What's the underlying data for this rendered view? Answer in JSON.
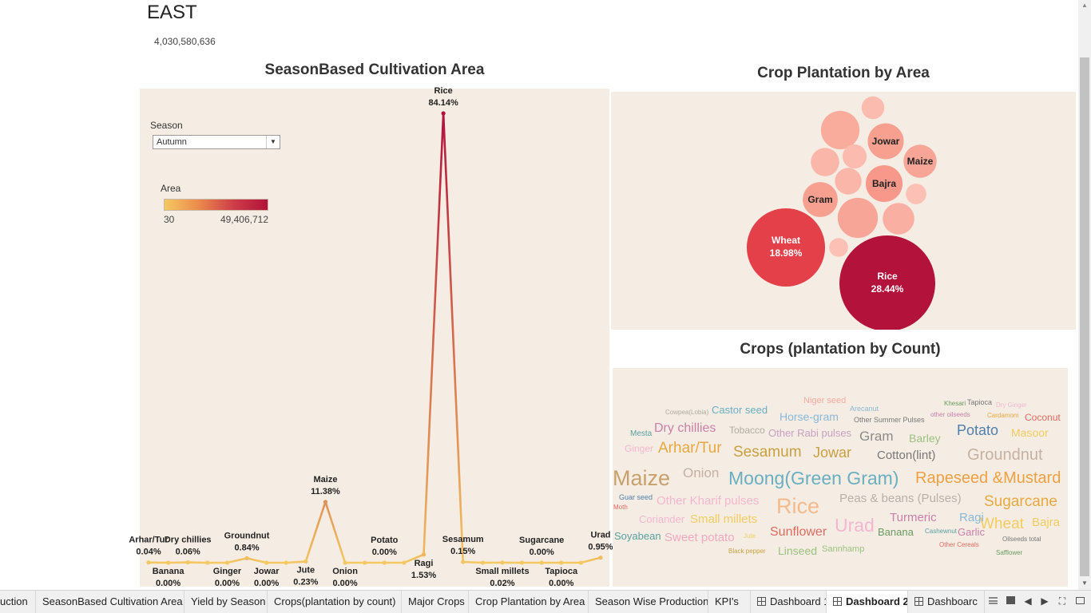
{
  "header": {
    "region": "EAST",
    "total_area": "4,030,580,636"
  },
  "season_chart": {
    "title": "SeasonBased Cultivation Area",
    "filter_label": "Season",
    "filter_value": "Autumn",
    "legend_title": "Area",
    "legend_min": "30",
    "legend_max": "49,406,712"
  },
  "bubble_chart": {
    "title": "Crop Plantation by Area"
  },
  "cloud_chart": {
    "title": "Crops (plantation by Count)"
  },
  "chart_data": [
    {
      "type": "line",
      "title": "SeasonBased Cultivation Area",
      "x": [
        "Arhar/Tur",
        "Banana",
        "Dry chillies",
        "",
        "Ginger",
        "Groundnut",
        "Jowar",
        "",
        "Jute",
        "Maize",
        "Onion",
        "",
        "Potato",
        "",
        "Ragi",
        "Rice",
        "Sesamum",
        "",
        "Small millets",
        "",
        "Sugarcane",
        "Tapioca",
        "",
        "Urad"
      ],
      "values": [
        0.04,
        0.0,
        0.06,
        0.0,
        0.0,
        0.84,
        0.0,
        0.0,
        0.23,
        11.38,
        0.0,
        0.0,
        0.0,
        0.0,
        1.53,
        84.14,
        0.15,
        0.0,
        0.02,
        0.0,
        0.0,
        0.0,
        0.0,
        0.95
      ],
      "point_labels": [
        {
          "i": 0,
          "name": "Arhar/Tur",
          "pct": "0.04%",
          "pos": "above"
        },
        {
          "i": 1,
          "name": "Banana",
          "pct": "0.00%",
          "pos": "below"
        },
        {
          "i": 2,
          "name": "Dry chillies",
          "pct": "0.06%",
          "pos": "above"
        },
        {
          "i": 4,
          "name": "Ginger",
          "pct": "0.00%",
          "pos": "below"
        },
        {
          "i": 5,
          "name": "Groundnut",
          "pct": "0.84%",
          "pos": "above"
        },
        {
          "i": 6,
          "name": "Jowar",
          "pct": "0.00%",
          "pos": "below"
        },
        {
          "i": 8,
          "name": "Jute",
          "pct": "0.23%",
          "pos": "below"
        },
        {
          "i": 9,
          "name": "Maize",
          "pct": "11.38%",
          "pos": "above"
        },
        {
          "i": 10,
          "name": "Onion",
          "pct": "0.00%",
          "pos": "below"
        },
        {
          "i": 12,
          "name": "Potato",
          "pct": "0.00%",
          "pos": "above"
        },
        {
          "i": 14,
          "name": "Ragi",
          "pct": "1.53%",
          "pos": "below"
        },
        {
          "i": 15,
          "name": "Rice",
          "pct": "84.14%",
          "pos": "above"
        },
        {
          "i": 16,
          "name": "Sesamum",
          "pct": "0.15%",
          "pos": "above"
        },
        {
          "i": 18,
          "name": "Small millets",
          "pct": "0.02%",
          "pos": "below"
        },
        {
          "i": 20,
          "name": "Sugarcane",
          "pct": "0.00%",
          "pos": "above"
        },
        {
          "i": 21,
          "name": "Tapioca",
          "pct": "0.00%",
          "pos": "below"
        },
        {
          "i": 23,
          "name": "Urad",
          "pct": "0.95%",
          "pos": "above"
        }
      ],
      "colors": {
        "low": "#f5c862",
        "high": "#b3123a"
      }
    },
    {
      "type": "bubble",
      "title": "Crop Plantation by Area",
      "bubbles": [
        {
          "name": "Rice",
          "pct": "28.44%",
          "value": 28.44,
          "color": "#b3123a"
        },
        {
          "name": "Wheat",
          "pct": "18.98%",
          "value": 18.98,
          "color": "#e3404a"
        },
        {
          "name": "Bajra",
          "pct": "",
          "value": 4.2,
          "color": "#f7988a"
        },
        {
          "name": "Gram",
          "pct": "",
          "value": 3.8,
          "color": "#f7a090"
        },
        {
          "name": "Jowar",
          "pct": "",
          "value": 4.0,
          "color": "#f7a090"
        },
        {
          "name": "Maize",
          "pct": "",
          "value": 3.4,
          "color": "#f7a596"
        },
        {
          "name": "",
          "pct": "",
          "value": 5.0,
          "color": "#f7a596"
        },
        {
          "name": "",
          "pct": "",
          "value": 4.6,
          "color": "#f9ab9c"
        },
        {
          "name": "",
          "pct": "",
          "value": 3.1,
          "color": "#f9b0a2"
        },
        {
          "name": "",
          "pct": "",
          "value": 2.5,
          "color": "#fab6a8"
        },
        {
          "name": "",
          "pct": "",
          "value": 2.2,
          "color": "#fab6a8"
        },
        {
          "name": "",
          "pct": "",
          "value": 1.8,
          "color": "#fbbbae"
        },
        {
          "name": "",
          "pct": "",
          "value": 1.6,
          "color": "#fbbbae"
        },
        {
          "name": "",
          "pct": "",
          "value": 1.3,
          "color": "#fcc0b4"
        },
        {
          "name": "",
          "pct": "",
          "value": 1.1,
          "color": "#fcc0b4"
        }
      ]
    },
    {
      "type": "wordcloud",
      "title": "Crops (plantation by Count)",
      "words": [
        {
          "text": "Maize",
          "size": 27,
          "color": "#c8a06a"
        },
        {
          "text": "Moong(Green Gram)",
          "size": 23,
          "color": "#6aaec2"
        },
        {
          "text": "Rice",
          "size": 27,
          "color": "#f6b98a"
        },
        {
          "text": "Urad",
          "size": 23,
          "color": "#f3b6d0"
        },
        {
          "text": "Rapeseed &Mustard",
          "size": 20,
          "color": "#f0a040"
        },
        {
          "text": "Groundnut",
          "size": 20,
          "color": "#c6b0a4"
        },
        {
          "text": "Arhar/Tur",
          "size": 19,
          "color": "#e8a840"
        },
        {
          "text": "Sesamum",
          "size": 19,
          "color": "#c8a040"
        },
        {
          "text": "Jowar",
          "size": 18,
          "color": "#c8a040"
        },
        {
          "text": "Potato",
          "size": 18,
          "color": "#4f7fae"
        },
        {
          "text": "Sugarcane",
          "size": 19,
          "color": "#e8a840"
        },
        {
          "text": "Wheat",
          "size": 19,
          "color": "#f2cc60"
        },
        {
          "text": "Onion",
          "size": 17,
          "color": "#c6b0a4"
        },
        {
          "text": "Gram",
          "size": 17,
          "color": "#8a8a8a"
        },
        {
          "text": "Sunflower",
          "size": 16,
          "color": "#e06a60"
        },
        {
          "text": "Dry chillies",
          "size": 16,
          "color": "#c880a8"
        },
        {
          "text": "Cotton(lint)",
          "size": 15,
          "color": "#777"
        },
        {
          "text": "Other Kharif pulses",
          "size": 15,
          "color": "#f3b6d0"
        },
        {
          "text": "Small millets",
          "size": 15,
          "color": "#f2cc60"
        },
        {
          "text": "Peas & beans (Pulses)",
          "size": 15,
          "color": "#b8b0aa"
        },
        {
          "text": "Turmeric",
          "size": 15,
          "color": "#c880a8"
        },
        {
          "text": "Horse-gram",
          "size": 14,
          "color": "#8ab8d8"
        },
        {
          "text": "Barley",
          "size": 14,
          "color": "#9cc080"
        },
        {
          "text": "Masoor",
          "size": 14,
          "color": "#f2cc60"
        },
        {
          "text": "Bajra",
          "size": 15,
          "color": "#f2cc60"
        },
        {
          "text": "Sweet potato",
          "size": 15,
          "color": "#f3a8c0"
        },
        {
          "text": "Ragi",
          "size": 15,
          "color": "#8ab8d8"
        },
        {
          "text": "Linseed",
          "size": 14,
          "color": "#9cc080"
        },
        {
          "text": "Banana",
          "size": 13,
          "color": "#6a9a60"
        },
        {
          "text": "Garlic",
          "size": 13,
          "color": "#c880a8"
        },
        {
          "text": "Soyabean",
          "size": 13,
          "color": "#5aa0a0"
        },
        {
          "text": "Coriander",
          "size": 13,
          "color": "#f3b6d0"
        },
        {
          "text": "Castor seed",
          "size": 13,
          "color": "#6aaec2"
        },
        {
          "text": "Other Rabi pulses",
          "size": 13,
          "color": "#c8a0c0"
        },
        {
          "text": "Tobacco",
          "size": 12,
          "color": "#b0aaa4"
        },
        {
          "text": "Ginger",
          "size": 12,
          "color": "#f3b6d0"
        },
        {
          "text": "Coconut",
          "size": 12,
          "color": "#e06a60"
        },
        {
          "text": "Niger seed",
          "size": 11,
          "color": "#f3a8a0"
        },
        {
          "text": "Sannhamp",
          "size": 11,
          "color": "#9cc080"
        },
        {
          "text": "Mesta",
          "size": 10,
          "color": "#5aa0a0"
        },
        {
          "text": "Arecanut",
          "size": 9,
          "color": "#8ab8d8"
        },
        {
          "text": "Other Summer Pulses",
          "size": 9,
          "color": "#777"
        },
        {
          "text": "Tapioca",
          "size": 9,
          "color": "#777"
        },
        {
          "text": "Khesari",
          "size": 8,
          "color": "#6a9a60"
        },
        {
          "text": "Dry Ginger",
          "size": 8,
          "color": "#f3b6d0"
        },
        {
          "text": "other oilseeds",
          "size": 8,
          "color": "#c880a8"
        },
        {
          "text": "Cardamom",
          "size": 8,
          "color": "#e8a840"
        },
        {
          "text": "Cowpea(Lobia)",
          "size": 8,
          "color": "#b0aaa4"
        },
        {
          "text": "Guar seed",
          "size": 9,
          "color": "#4f7fae"
        },
        {
          "text": "Moth",
          "size": 8,
          "color": "#e06a60"
        },
        {
          "text": "Jute",
          "size": 8,
          "color": "#f2cc60"
        },
        {
          "text": "Cashewnut",
          "size": 8,
          "color": "#5aa0a0"
        },
        {
          "text": "Black pepper",
          "size": 8,
          "color": "#c8a040"
        },
        {
          "text": "Oilseeds total",
          "size": 8,
          "color": "#777"
        },
        {
          "text": "Other Cereals",
          "size": 8,
          "color": "#e06a60"
        },
        {
          "text": "Safflower",
          "size": 8,
          "color": "#6a9a60"
        }
      ]
    }
  ],
  "tabs": [
    {
      "label": "uction",
      "active": false,
      "icon": false
    },
    {
      "label": "SeasonBased Cultivation Area",
      "active": false,
      "icon": false
    },
    {
      "label": "Yield by Season",
      "active": false,
      "icon": false
    },
    {
      "label": "Crops(plantation by count)",
      "active": false,
      "icon": false
    },
    {
      "label": "Major Crops",
      "active": false,
      "icon": false
    },
    {
      "label": "Crop Plantation by Area",
      "active": false,
      "icon": false
    },
    {
      "label": "Season Wise Production",
      "active": false,
      "icon": false
    },
    {
      "label": "KPI's",
      "active": false,
      "icon": false
    },
    {
      "label": "Dashboard 1",
      "active": false,
      "icon": true
    },
    {
      "label": "Dashboard 2",
      "active": true,
      "icon": true
    },
    {
      "label": "Dashboarc",
      "active": false,
      "icon": true
    }
  ],
  "icons": {
    "dropdown": "chevron-down-icon",
    "dashboard": "dashboard-icon",
    "grid": "grid-view-icon",
    "filmstrip": "filmstrip-icon",
    "first": "first-tab-icon",
    "prev": "prev-tab-icon",
    "next": "next-tab-icon",
    "fullscreen": "fullscreen-icon",
    "present": "presentation-icon"
  }
}
